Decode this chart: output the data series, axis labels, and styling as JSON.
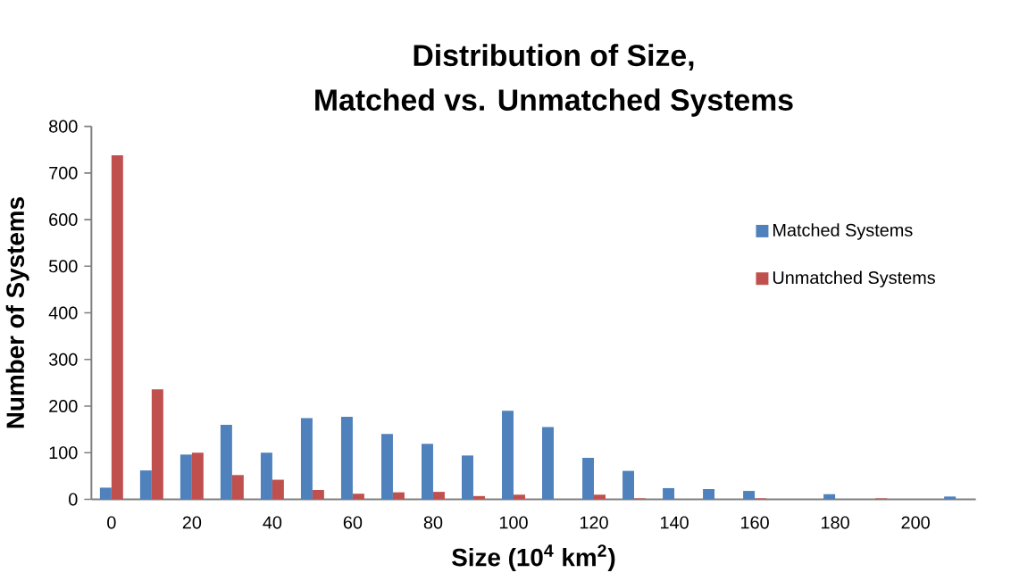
{
  "chart_data": {
    "type": "bar",
    "title": "Distribution of Size,",
    "subtitle": "Matched vs. Unmatched Systems",
    "xlabel": "Size (10$^{4}$ km$^{2}$)",
    "ylabel": "Number of Systems",
    "categories": [
      "0",
      null,
      "20",
      null,
      "40",
      null,
      "60",
      null,
      "80",
      null,
      "100",
      null,
      "120",
      null,
      "140",
      null,
      "160",
      null,
      "180",
      null,
      "200",
      null
    ],
    "series": [
      {
        "name": "Matched Systems",
        "color": "#4f81bd",
        "values": [
          25,
          62,
          96,
          160,
          100,
          174,
          177,
          140,
          119,
          94,
          190,
          155,
          89,
          61,
          24,
          22,
          18,
          0,
          11,
          0,
          0,
          6
        ]
      },
      {
        "name": "Unmatched Systems",
        "color": "#c0504d",
        "values": [
          738,
          236,
          100,
          52,
          42,
          20,
          12,
          15,
          16,
          7,
          10,
          0,
          10,
          2,
          0,
          0,
          2,
          0,
          0,
          2,
          0,
          0
        ]
      }
    ],
    "ylim": [
      0,
      800
    ],
    "yticks": [
      0,
      100,
      200,
      300,
      400,
      500,
      600,
      700,
      800
    ],
    "grid": false,
    "legend": "right"
  }
}
